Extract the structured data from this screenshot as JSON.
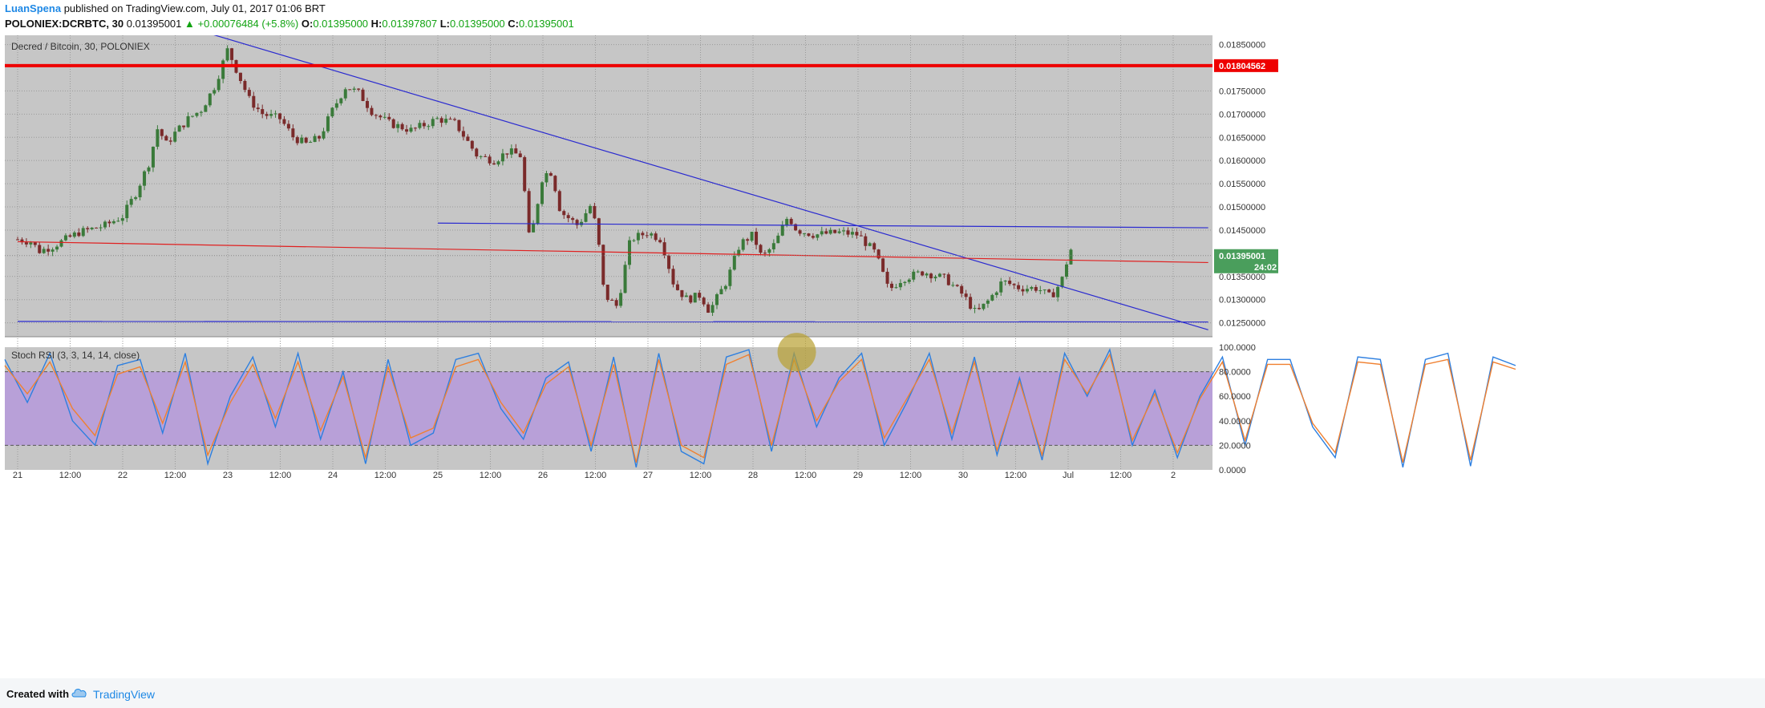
{
  "header": {
    "author": "LuanSpena",
    "published": "published on TradingView.com, July 01, 2017 01:06 BRT",
    "symbol": "POLONIEX:DCRBTC, 30",
    "last": "0.01395001",
    "change": "▲ +0.00076484 (+5.8%)",
    "open_label": "O:",
    "open": "0.01395000",
    "high_label": "H:",
    "high": "0.01397807",
    "low_label": "L:",
    "low": "0.01395000",
    "close_label": "C:",
    "close": "0.01395001"
  },
  "footer": {
    "created_with": "Created with",
    "brand": "TradingView"
  },
  "colors": {
    "chart_bg": "#c6c6c6",
    "up_candle": "#3a7a3a",
    "down_candle": "#7a2a2a",
    "trend_blue": "#2a2ad0",
    "trend_red": "#e02020",
    "resistance": "#ee0000",
    "last_price_tag": "#4a9e5c",
    "rsi_fill": "#b8a0d8",
    "rsi_k": "#2d7fe0",
    "rsi_d": "#f08030",
    "highlight": "#b8a030"
  },
  "chart_data": [
    {
      "type": "candlestick",
      "title": "Decred / Bitcoin, 30, POLONIEX",
      "ylim": [
        0.0122,
        0.0187
      ],
      "y_ticks": [
        "0.01850000",
        "0.01750000",
        "0.01700000",
        "0.01650000",
        "0.01600000",
        "0.01550000",
        "0.01500000",
        "0.01450000",
        "0.01350000",
        "0.01300000",
        "0.01250000"
      ],
      "x_ticks": [
        "21",
        "12:00",
        "22",
        "12:00",
        "23",
        "12:00",
        "24",
        "12:00",
        "25",
        "12:00",
        "26",
        "12:00",
        "27",
        "12:00",
        "28",
        "12:00",
        "29",
        "12:00",
        "30",
        "12:00",
        "Jul",
        "12:00",
        "2"
      ],
      "resistance_level": "0.01804562",
      "last_price": "0.01395001",
      "countdown": "24:02",
      "trend_lines": [
        {
          "color": "blue",
          "from": [
            "Jun 22 14:00",
            0.0189
          ],
          "to": [
            "Jul 2 08:00",
            0.01235
          ]
        },
        {
          "color": "blue",
          "from": [
            "Jun 25 00:00",
            0.01465
          ],
          "to": [
            "Jul 2 08:00",
            0.01455
          ]
        },
        {
          "color": "blue",
          "from": [
            "Jun 21 00:00",
            0.01253
          ],
          "to": [
            "Jul 2 08:00",
            0.01252
          ]
        },
        {
          "color": "red",
          "from": [
            "Jun 21 00:00",
            0.01425
          ],
          "to": [
            "Jul 2 08:00",
            0.0138
          ]
        }
      ],
      "close_path": [
        [
          "Jun 21 00:00",
          0.0143
        ],
        [
          "Jun 21 03:00",
          0.01425
        ],
        [
          "Jun 21 05:00",
          0.01405
        ],
        [
          "Jun 21 08:00",
          0.01415
        ],
        [
          "Jun 21 14:00",
          0.01445
        ],
        [
          "Jun 21 20:00",
          0.0146
        ],
        [
          "Jun 22 00:00",
          0.0148
        ],
        [
          "Jun 22 03:00",
          0.0153
        ],
        [
          "Jun 22 06:00",
          0.01595
        ],
        [
          "Jun 22 08:00",
          0.0167
        ],
        [
          "Jun 22 10:00",
          0.01635
        ],
        [
          "Jun 22 12:00",
          0.0166
        ],
        [
          "Jun 22 15:00",
          0.0169
        ],
        [
          "Jun 22 18:00",
          0.0171
        ],
        [
          "Jun 22 21:00",
          0.0176
        ],
        [
          "Jun 23 00:00",
          0.0184
        ],
        [
          "Jun 23 02:00",
          0.01795
        ],
        [
          "Jun 23 05:00",
          0.0173
        ],
        [
          "Jun 23 08:00",
          0.017
        ],
        [
          "Jun 23 12:00",
          0.0169
        ],
        [
          "Jun 23 15:00",
          0.0165
        ],
        [
          "Jun 23 18:00",
          0.01635
        ],
        [
          "Jun 23 21:00",
          0.0165
        ],
        [
          "Jun 24 00:00",
          0.0171
        ],
        [
          "Jun 24 03:00",
          0.0176
        ],
        [
          "Jun 24 06:00",
          0.01745
        ],
        [
          "Jun 24 09:00",
          0.01705
        ],
        [
          "Jun 24 13:00",
          0.0168
        ],
        [
          "Jun 24 18:00",
          0.01665
        ],
        [
          "Jun 25 00:00",
          0.0169
        ],
        [
          "Jun 25 04:00",
          0.0168
        ],
        [
          "Jun 25 09:00",
          0.0161
        ],
        [
          "Jun 25 13:00",
          0.016
        ],
        [
          "Jun 25 16:00",
          0.0162
        ],
        [
          "Jun 25 19:00",
          0.0161
        ],
        [
          "Jun 25 21:00",
          0.0142
        ],
        [
          "Jun 26 00:00",
          0.0157
        ],
        [
          "Jun 26 02:00",
          0.01575
        ],
        [
          "Jun 26 04:00",
          0.0149
        ],
        [
          "Jun 26 08:00",
          0.0146
        ],
        [
          "Jun 26 11:00",
          0.01505
        ],
        [
          "Jun 26 12:30",
          0.0144
        ],
        [
          "Jun 26 14:00",
          0.0131
        ],
        [
          "Jun 26 17:00",
          0.01285
        ],
        [
          "Jun 26 20:00",
          0.0143
        ],
        [
          "Jun 27 00:00",
          0.01445
        ],
        [
          "Jun 27 03:00",
          0.0143
        ],
        [
          "Jun 27 06:00",
          0.0133
        ],
        [
          "Jun 27 09:00",
          0.013
        ],
        [
          "Jun 27 12:00",
          0.0131
        ],
        [
          "Jun 27 14:00",
          0.01275
        ],
        [
          "Jun 27 18:00",
          0.0134
        ],
        [
          "Jun 27 21:00",
          0.0142
        ],
        [
          "Jun 28 00:00",
          0.0144
        ],
        [
          "Jun 28 02:00",
          0.0139
        ],
        [
          "Jun 28 05:00",
          0.0142
        ],
        [
          "Jun 28 08:00",
          0.0148
        ],
        [
          "Jun 28 10:00",
          0.0145
        ],
        [
          "Jun 28 14:00",
          0.0144
        ],
        [
          "Jun 28 20:00",
          0.01445
        ],
        [
          "Jun 29 00:00",
          0.0144
        ],
        [
          "Jun 29 04:00",
          0.014
        ],
        [
          "Jun 29 07:00",
          0.0132
        ],
        [
          "Jun 29 10:00",
          0.01345
        ],
        [
          "Jun 29 15:00",
          0.0136
        ],
        [
          "Jun 29 20:00",
          0.01345
        ],
        [
          "Jun 30 00:00",
          0.0131
        ],
        [
          "Jun 30 03:00",
          0.0127
        ],
        [
          "Jun 30 06:00",
          0.013
        ],
        [
          "Jun 30 09:00",
          0.0134
        ],
        [
          "Jun 30 13:00",
          0.01325
        ],
        [
          "Jun 30 17:00",
          0.01325
        ],
        [
          "Jun 30 20:00",
          0.01305
        ],
        [
          "Jun 30 22:30",
          0.0134
        ],
        [
          "Jul 1 00:30",
          0.0141
        ],
        [
          "Jul 1 01:30",
          0.01395
        ]
      ]
    },
    {
      "type": "line",
      "title": "Stoch RSI (3, 3, 14, 14, close)",
      "ylim": [
        0,
        100
      ],
      "y_ticks": [
        "100.0000",
        "80.0000",
        "60.0000",
        "40.0000",
        "20.0000",
        "0.0000"
      ],
      "band": [
        20,
        80
      ],
      "series": [
        {
          "values": [
            90,
            55,
            95,
            40,
            20,
            85,
            90,
            30,
            95,
            5,
            60,
            92,
            35,
            95,
            25,
            80,
            5,
            90,
            20,
            30,
            90,
            95,
            50,
            25,
            75,
            88,
            15,
            92,
            2,
            95,
            15,
            5,
            92,
            98,
            15,
            95,
            35,
            75,
            95,
            20,
            55,
            95,
            25,
            92,
            12,
            75,
            8,
            95,
            60,
            98,
            20,
            65,
            10,
            60,
            92,
            20,
            90,
            90,
            35,
            10,
            92,
            90,
            2,
            90,
            95,
            3,
            92,
            85
          ]
        },
        {
          "values": [
            85,
            62,
            88,
            50,
            28,
            78,
            84,
            38,
            88,
            12,
            55,
            86,
            42,
            88,
            32,
            76,
            10,
            84,
            26,
            34,
            84,
            90,
            55,
            30,
            70,
            84,
            20,
            86,
            6,
            90,
            20,
            10,
            86,
            94,
            20,
            90,
            40,
            72,
            90,
            26,
            58,
            90,
            30,
            88,
            16,
            72,
            12,
            90,
            62,
            94,
            24,
            62,
            14,
            58,
            88,
            24,
            86,
            86,
            38,
            14,
            88,
            86,
            6,
            86,
            90,
            8,
            88,
            82
          ]
        }
      ]
    }
  ]
}
